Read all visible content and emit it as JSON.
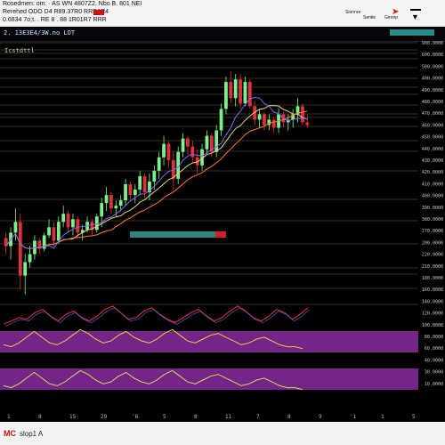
{
  "header": {
    "line1": "Rosedmen: om:  · AS   WN  4807Z2. Nbo    B. 801 NEI",
    "line2": "Rerehed ODO   D4 R89.37R0 RRR1R4",
    "line3": "0.6834 7o;t. .  RE 8 .  88 1R01R7  RRR",
    "right_links": [
      "Sionnre",
      "Sentie",
      "Ginrnp"
    ],
    "colors": {
      "bg": "#f4f4f4",
      "accent_red": "#d01010",
      "accent_orange": "#f08030"
    }
  },
  "toolbar": {
    "symbol": "2. 13E3E4/3W.no    LOT",
    "sub": "Icstdttl"
  },
  "footer": {
    "logo_text": "MC",
    "logo_sub": "slop1 A"
  },
  "chart_data": {
    "type": "candlestick",
    "candles": [
      [
        36,
        38,
        30,
        33
      ],
      [
        33,
        40,
        28,
        38
      ],
      [
        38,
        47,
        35,
        42
      ],
      [
        42,
        45,
        17,
        22
      ],
      [
        22,
        30,
        15,
        27
      ],
      [
        27,
        33,
        25,
        30
      ],
      [
        30,
        37,
        28,
        35
      ],
      [
        35,
        36,
        30,
        32
      ],
      [
        32,
        38,
        31,
        37
      ],
      [
        37,
        43,
        36,
        40
      ],
      [
        40,
        42,
        33,
        35
      ],
      [
        35,
        44,
        34,
        42
      ],
      [
        42,
        48,
        40,
        45
      ],
      [
        45,
        46,
        38,
        40
      ],
      [
        40,
        45,
        37,
        43
      ],
      [
        43,
        44,
        36,
        38
      ],
      [
        38,
        41,
        35,
        39
      ],
      [
        39,
        44,
        38,
        42
      ],
      [
        42,
        43,
        37,
        39
      ],
      [
        39,
        45,
        38,
        44
      ],
      [
        44,
        51,
        40,
        49
      ],
      [
        49,
        55,
        46,
        52
      ],
      [
        52,
        53,
        45,
        47
      ],
      [
        47,
        50,
        44,
        48
      ],
      [
        48,
        52,
        46,
        50
      ],
      [
        50,
        58,
        48,
        56
      ],
      [
        56,
        57,
        50,
        52
      ],
      [
        52,
        56,
        49,
        54
      ],
      [
        54,
        61,
        52,
        59
      ],
      [
        59,
        60,
        51,
        53
      ],
      [
        53,
        60,
        50,
        57
      ],
      [
        57,
        63,
        54,
        61
      ],
      [
        61,
        68,
        58,
        66
      ],
      [
        66,
        74,
        63,
        71
      ],
      [
        71,
        72,
        62,
        65
      ],
      [
        65,
        68,
        54,
        58
      ],
      [
        58,
        70,
        56,
        68
      ],
      [
        68,
        75,
        66,
        73
      ],
      [
        73,
        74,
        67,
        70
      ],
      [
        70,
        72,
        64,
        66
      ],
      [
        66,
        69,
        60,
        63
      ],
      [
        63,
        71,
        61,
        69
      ],
      [
        69,
        76,
        67,
        74
      ],
      [
        74,
        75,
        66,
        68
      ],
      [
        68,
        78,
        66,
        76
      ],
      [
        76,
        86,
        74,
        84
      ],
      [
        84,
        96,
        82,
        94
      ],
      [
        94,
        98,
        86,
        88
      ],
      [
        88,
        97,
        85,
        95
      ],
      [
        95,
        97,
        84,
        86
      ],
      [
        86,
        96,
        85,
        94
      ],
      [
        94,
        95,
        84,
        85
      ],
      [
        85,
        87,
        78,
        80
      ],
      [
        80,
        84,
        77,
        82
      ],
      [
        82,
        83,
        76,
        78
      ],
      [
        78,
        82,
        76,
        80
      ],
      [
        80,
        81,
        75,
        77
      ],
      [
        77,
        84,
        75,
        82
      ],
      [
        82,
        83,
        77,
        79
      ],
      [
        79,
        82,
        76,
        80
      ],
      [
        80,
        84,
        77,
        82
      ],
      [
        82,
        88,
        79,
        85
      ],
      [
        85,
        86,
        78,
        79
      ],
      [
        79,
        82,
        77,
        78
      ]
    ],
    "price_axis_labels": [
      "900.0000",
      "600.0000",
      "500.0000",
      "400.0000",
      "490.0000",
      "480.0000",
      "470.0000",
      "460.0000",
      "450.0000",
      "440.0000",
      "430.0000",
      "420.0000",
      "410.0000",
      "400.0000",
      "390.0000",
      "380.0000",
      "270.0000",
      "200.0000",
      "220.0000",
      "210.0000",
      "180.0000",
      "160.0000",
      "140.0000",
      "120.0000",
      "100.0000",
      "80.0000",
      "60.0000",
      "40.0000",
      "30.0000",
      "10.0000"
    ],
    "time_axis_labels": [
      "1",
      "8",
      "15",
      "29",
      "'6",
      "5",
      "8",
      "11",
      "7",
      "8",
      "9",
      "'1",
      "1",
      "5"
    ],
    "oscillator1": [
      10,
      12,
      14,
      13,
      17,
      19,
      15,
      12,
      16,
      18,
      14,
      12,
      15,
      19,
      21,
      17,
      13,
      14,
      18,
      20,
      16,
      13,
      11,
      14,
      17,
      19,
      15,
      12,
      14,
      18,
      21,
      18,
      14,
      12,
      15,
      19,
      17,
      13,
      16,
      20
    ],
    "oscillator2": [
      10,
      9,
      11,
      14,
      17,
      14,
      11,
      10,
      12,
      15,
      18,
      16,
      13,
      11,
      12,
      15,
      17,
      14,
      12,
      11,
      13,
      16,
      18,
      15,
      12,
      11,
      13,
      15,
      16,
      14,
      12,
      10,
      11,
      13,
      14,
      12,
      10,
      9,
      9,
      8
    ],
    "colors": {
      "up": "#7cf08a",
      "down": "#e0303a",
      "ma1": "#e8d080",
      "ma2": "#ff7a30",
      "ma3": "#7a6cf0",
      "osc_fill": "#8a2aa0",
      "grid": "#c8b070"
    }
  }
}
